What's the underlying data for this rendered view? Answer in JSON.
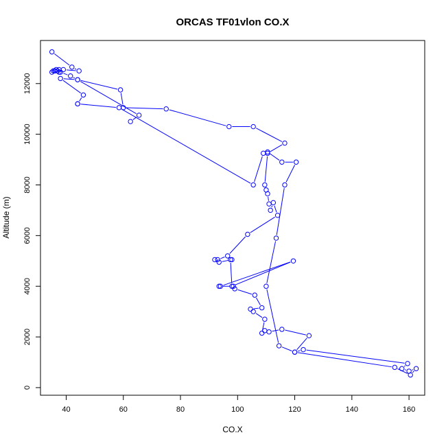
{
  "chart_data": {
    "type": "line",
    "title": "ORCAS TF01vlon CO.X",
    "xlabel": "CO.X",
    "ylabel": "Altitude (m)",
    "xlim": [
      31,
      165.5
    ],
    "ylim": [
      -300,
      13700
    ],
    "x_ticks": [
      40,
      60,
      80,
      100,
      120,
      140,
      160
    ],
    "y_ticks": [
      0,
      2000,
      4000,
      6000,
      8000,
      10000,
      12000
    ],
    "grid": false,
    "line_color": "#0000ff",
    "marker": "open-circle",
    "series": [
      {
        "x": [
          35,
          42,
          44.5,
          39,
          37.5,
          36,
          35.5,
          35,
          36,
          36.5,
          37,
          37.5,
          38,
          41.5,
          44,
          59,
          60,
          75,
          97,
          105.5,
          116.5,
          110.5,
          109.5,
          110,
          110.5,
          111,
          111.5,
          112.5,
          114,
          103.5,
          96.5,
          93,
          92,
          93.5,
          98,
          97.5,
          98,
          119.5,
          94,
          93.5,
          98.5,
          99,
          106,
          108.5,
          104.5,
          105.5,
          109.5,
          108.5,
          109.5,
          111,
          115.5,
          125,
          120,
          123,
          159.5,
          157.5,
          160,
          162.5,
          160.5,
          155,
          120,
          114.5,
          110,
          113.5,
          116.5,
          120.5,
          115.5,
          110.5,
          109,
          105.5,
          58.5,
          44,
          44,
          46,
          38,
          44,
          65.5,
          62.5
        ],
        "y": [
          13250,
          12650,
          12500,
          12550,
          12550,
          12500,
          12500,
          12450,
          12500,
          12550,
          12500,
          12450,
          12450,
          12300,
          12150,
          11750,
          11050,
          11000,
          10300,
          10300,
          9650,
          9250,
          8000,
          7800,
          7650,
          7250,
          7000,
          7300,
          6800,
          6050,
          5200,
          5050,
          5050,
          4950,
          5050,
          5050,
          4000,
          5000,
          4000,
          4000,
          4000,
          3900,
          3650,
          3150,
          3100,
          3000,
          2700,
          2150,
          2250,
          2200,
          2300,
          2050,
          1400,
          1500,
          950,
          750,
          650,
          750,
          500,
          800,
          1400,
          1650,
          4000,
          5900,
          8000,
          8900,
          8900,
          9300,
          9250,
          8000,
          11050,
          11200,
          11200,
          11550,
          12200,
          12150,
          10750,
          10500
        ]
      }
    ]
  }
}
